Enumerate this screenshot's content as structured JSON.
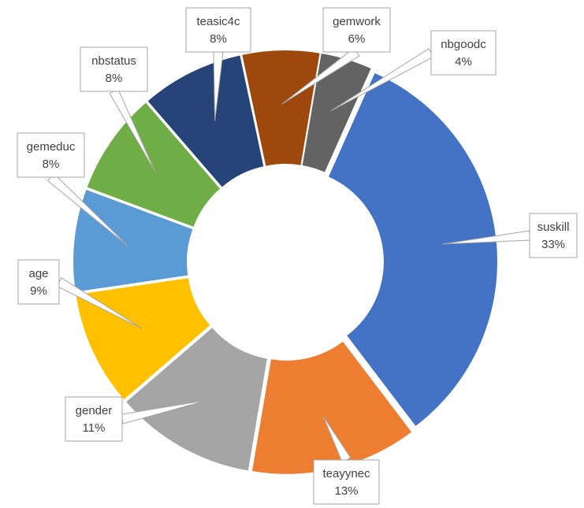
{
  "chart_data": {
    "type": "pie",
    "variant": "donut",
    "title": "",
    "legend": "none",
    "slices": [
      {
        "name": "suskill",
        "value": 33,
        "label": "33%",
        "color": "#4472C4"
      },
      {
        "name": "teayynec",
        "value": 13,
        "label": "13%",
        "color": "#ED7D31"
      },
      {
        "name": "gender",
        "value": 11,
        "label": "11%",
        "color": "#A5A5A5"
      },
      {
        "name": "age",
        "value": 9,
        "label": "9%",
        "color": "#FFC000"
      },
      {
        "name": "gemeduc",
        "value": 8,
        "label": "8%",
        "color": "#5B9BD5"
      },
      {
        "name": "nbstatus",
        "value": 8,
        "label": "8%",
        "color": "#70AD47"
      },
      {
        "name": "teasic4c",
        "value": 8,
        "label": "8%",
        "color": "#264478"
      },
      {
        "name": "gemwork",
        "value": 6,
        "label": "6%",
        "color": "#9E480E"
      },
      {
        "name": "nbgoodc",
        "value": 4,
        "label": "4%",
        "color": "#636363"
      }
    ]
  }
}
